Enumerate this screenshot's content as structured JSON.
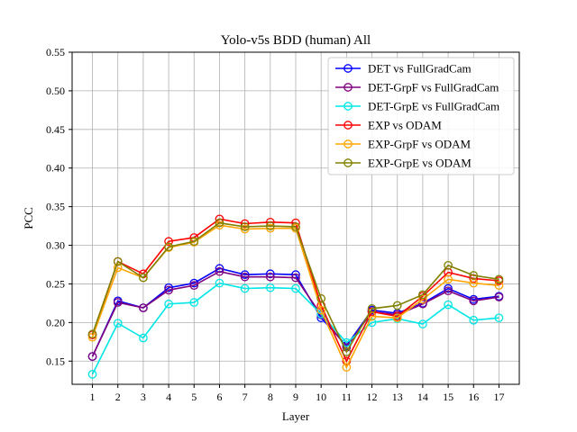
{
  "chart_data": {
    "type": "line",
    "title": "Yolo-v5s BDD (human) All",
    "xlabel": "Layer",
    "ylabel": "PCC",
    "x": [
      1,
      2,
      3,
      4,
      5,
      6,
      7,
      8,
      9,
      10,
      11,
      12,
      13,
      14,
      15,
      16,
      17
    ],
    "xlim": [
      0.2,
      17.8
    ],
    "ylim": [
      0.12,
      0.55
    ],
    "yticks": [
      "0.15",
      "0.20",
      "0.25",
      "0.30",
      "0.35",
      "0.40",
      "0.45",
      "0.50",
      "0.55"
    ],
    "ytick_values": [
      0.15,
      0.2,
      0.25,
      0.3,
      0.35,
      0.4,
      0.45,
      0.5,
      0.55
    ],
    "grid": true,
    "legend_position": "top-right",
    "series": [
      {
        "name": "DET vs FullGradCam",
        "color": "#0000ff",
        "values": [
          0.156,
          0.228,
          0.219,
          0.245,
          0.251,
          0.27,
          0.262,
          0.263,
          0.262,
          0.206,
          0.17,
          0.216,
          0.212,
          0.225,
          0.244,
          0.23,
          0.234
        ]
      },
      {
        "name": "DET-GrpF vs FullGradCam",
        "color": "#800080",
        "values": [
          0.156,
          0.226,
          0.219,
          0.242,
          0.248,
          0.266,
          0.259,
          0.259,
          0.258,
          0.21,
          0.168,
          0.214,
          0.21,
          0.224,
          0.241,
          0.228,
          0.233
        ]
      },
      {
        "name": "DET-GrpE vs FullGradCam",
        "color": "#00e6e6",
        "values": [
          0.133,
          0.199,
          0.18,
          0.224,
          0.226,
          0.251,
          0.244,
          0.245,
          0.244,
          0.211,
          0.174,
          0.2,
          0.205,
          0.198,
          0.223,
          0.203,
          0.206
        ]
      },
      {
        "name": "EXP vs ODAM",
        "color": "#ff0000",
        "values": [
          0.184,
          0.279,
          0.263,
          0.305,
          0.31,
          0.334,
          0.328,
          0.33,
          0.329,
          0.222,
          0.15,
          0.214,
          0.208,
          0.234,
          0.265,
          0.257,
          0.254
        ]
      },
      {
        "name": "EXP-GrpF vs ODAM",
        "color": "#ffa500",
        "values": [
          0.181,
          0.271,
          0.258,
          0.297,
          0.304,
          0.326,
          0.321,
          0.322,
          0.322,
          0.216,
          0.142,
          0.208,
          0.206,
          0.23,
          0.256,
          0.251,
          0.248
        ]
      },
      {
        "name": "EXP-GrpE vs ODAM",
        "color": "#808000",
        "values": [
          0.185,
          0.279,
          0.258,
          0.298,
          0.305,
          0.329,
          0.324,
          0.325,
          0.324,
          0.231,
          0.162,
          0.218,
          0.222,
          0.236,
          0.274,
          0.261,
          0.256
        ]
      }
    ]
  }
}
